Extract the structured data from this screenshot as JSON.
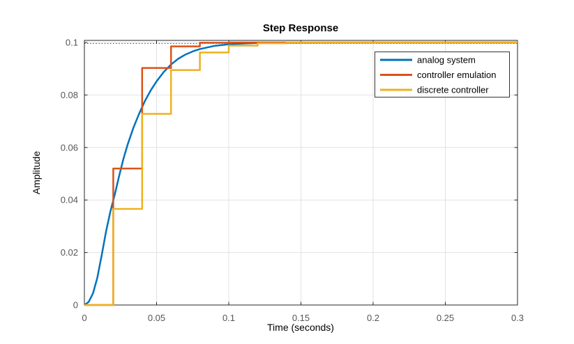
{
  "window": {
    "background": "#ffffff"
  },
  "chart_data": {
    "type": "line",
    "title": "Step Response",
    "xlabel": "Time (seconds)",
    "ylabel": "Amplitude",
    "xlim": [
      0,
      0.3
    ],
    "ylim": [
      0,
      0.1008
    ],
    "xticks": [
      0,
      0.05,
      0.1,
      0.15,
      0.2,
      0.25,
      0.3
    ],
    "xtick_labels": [
      "0",
      "0.05",
      "0.1",
      "0.15",
      "0.2",
      "0.25",
      "0.3"
    ],
    "yticks": [
      0,
      0.02,
      0.04,
      0.06,
      0.08,
      0.1
    ],
    "ytick_labels": [
      "0",
      "0.02",
      "0.04",
      "0.06",
      "0.08",
      "0.1"
    ],
    "grid": true,
    "legend_position": "northeast",
    "axis_color": "#262626",
    "grid_color": "#e2e2e2",
    "tick_label_color": "#555555",
    "text_color": "#161616",
    "legend_border_color": "#333333",
    "steady_state_line": {
      "y": 0.1,
      "style": "dotted",
      "color": "#4a4a4a"
    },
    "sample_time": 0.02,
    "series": [
      {
        "name": "analog system",
        "color": "#0072BD",
        "style": "line",
        "points": [
          [
            0,
            0
          ],
          [
            0.003,
            0.0012
          ],
          [
            0.006,
            0.0045
          ],
          [
            0.009,
            0.0105
          ],
          [
            0.012,
            0.019
          ],
          [
            0.015,
            0.028
          ],
          [
            0.018,
            0.0356
          ],
          [
            0.021,
            0.042
          ],
          [
            0.024,
            0.049
          ],
          [
            0.027,
            0.0556
          ],
          [
            0.03,
            0.0612
          ],
          [
            0.034,
            0.0676
          ],
          [
            0.038,
            0.073
          ],
          [
            0.042,
            0.0778
          ],
          [
            0.046,
            0.0818
          ],
          [
            0.05,
            0.0852
          ],
          [
            0.055,
            0.0888
          ],
          [
            0.06,
            0.0916
          ],
          [
            0.065,
            0.0938
          ],
          [
            0.07,
            0.0954
          ],
          [
            0.075,
            0.0966
          ],
          [
            0.08,
            0.0975
          ],
          [
            0.09,
            0.0987
          ],
          [
            0.1,
            0.0993
          ],
          [
            0.11,
            0.0996
          ],
          [
            0.12,
            0.0998
          ],
          [
            0.14,
            0.0999
          ],
          [
            0.17,
            0.09995
          ],
          [
            0.3,
            0.1
          ]
        ]
      },
      {
        "name": "controller emulation",
        "color": "#D95319",
        "style": "stairs",
        "steps": [
          [
            0,
            0
          ],
          [
            0.02,
            0.052
          ],
          [
            0.04,
            0.0903
          ],
          [
            0.06,
            0.0985
          ],
          [
            0.08,
            0.0999
          ],
          [
            0.1,
            0.1
          ]
        ]
      },
      {
        "name": "discrete controller",
        "color": "#EDB120",
        "style": "stairs",
        "steps": [
          [
            0,
            0
          ],
          [
            0.02,
            0.0366
          ],
          [
            0.04,
            0.0728
          ],
          [
            0.06,
            0.0895
          ],
          [
            0.08,
            0.0962
          ],
          [
            0.1,
            0.0988
          ],
          [
            0.12,
            0.0997
          ],
          [
            0.14,
            0.1
          ]
        ]
      }
    ]
  }
}
